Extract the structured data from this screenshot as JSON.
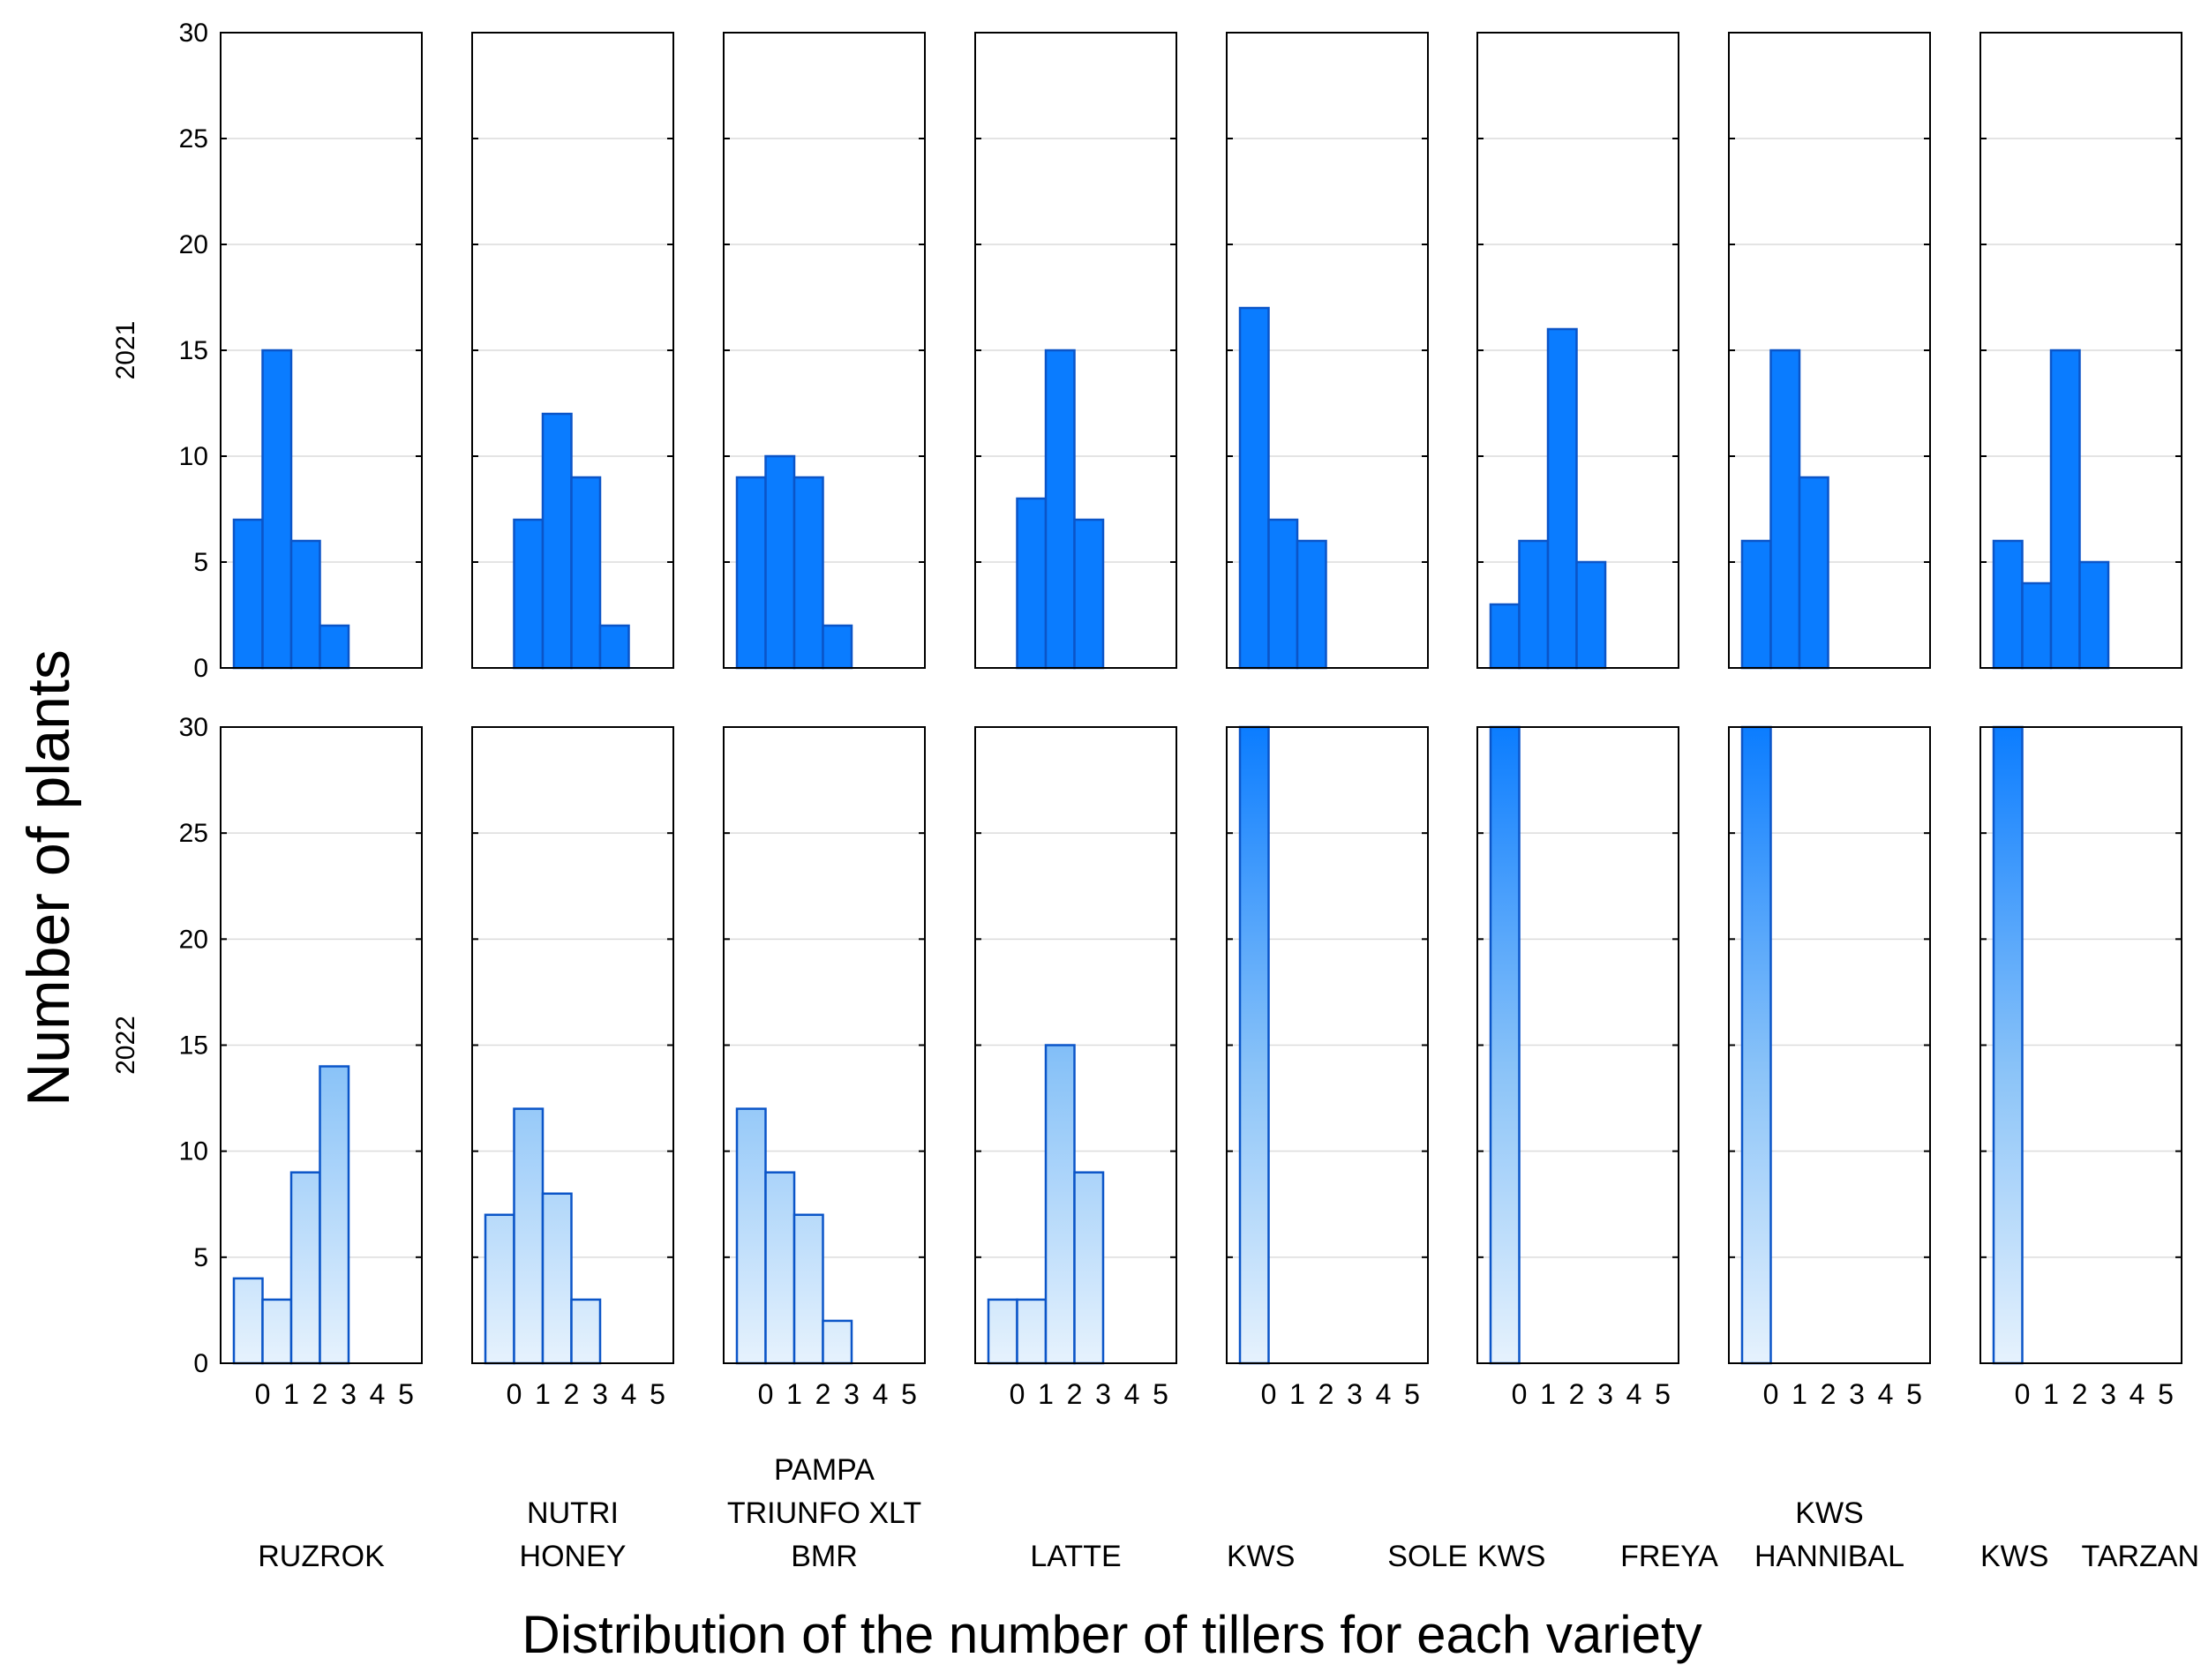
{
  "chart_data": {
    "type": "bar",
    "title": "",
    "xlabel": "Distribution of the number of tillers for each variety",
    "ylabel": "Number of plants",
    "ylim": [
      0,
      30
    ],
    "yticks": [
      "0",
      "5",
      "10",
      "15",
      "20",
      "25",
      "30"
    ],
    "categories": [
      "0",
      "1",
      "2",
      "3",
      "4",
      "5"
    ],
    "bar_color": "#1e88ff",
    "rows": [
      {
        "label": "2021",
        "panels": [
          {
            "variety": "RUZROK",
            "values": [
              7,
              15,
              6,
              2,
              0,
              0
            ]
          },
          {
            "variety": "NUTRI HONEY",
            "values": [
              0,
              7,
              12,
              9,
              2,
              0
            ]
          },
          {
            "variety": "PAMPA TRIUNFO XLT BMR",
            "values": [
              9,
              10,
              9,
              2,
              0,
              0
            ]
          },
          {
            "variety": "LATTE",
            "values": [
              0,
              8,
              15,
              7,
              0,
              0
            ]
          },
          {
            "variety": "KWS SOLE",
            "values": [
              17,
              7,
              6,
              0,
              0,
              0
            ]
          },
          {
            "variety": "KWS FREYA",
            "values": [
              3,
              6,
              16,
              5,
              0,
              0
            ]
          },
          {
            "variety": "KWS HANNIBAL",
            "values": [
              6,
              15,
              9,
              0,
              0,
              0
            ]
          },
          {
            "variety": "KWS TARZAN",
            "values": [
              6,
              4,
              15,
              5,
              0,
              0
            ]
          }
        ]
      },
      {
        "label": "2022",
        "panels": [
          {
            "variety": "RUZROK",
            "values": [
              4,
              3,
              9,
              14,
              0,
              0
            ]
          },
          {
            "variety": "NUTRI HONEY",
            "values": [
              7,
              12,
              8,
              3,
              0,
              0
            ]
          },
          {
            "variety": "PAMPA TRIUNFO XLT BMR",
            "values": [
              12,
              9,
              7,
              2,
              0,
              0
            ]
          },
          {
            "variety": "LATTE",
            "values": [
              3,
              3,
              15,
              9,
              0,
              0
            ]
          },
          {
            "variety": "KWS SOLE",
            "values": [
              30,
              0,
              0,
              0,
              0,
              0
            ]
          },
          {
            "variety": "KWS FREYA",
            "values": [
              30,
              0,
              0,
              0,
              0,
              0
            ]
          },
          {
            "variety": "KWS HANNIBAL",
            "values": [
              30,
              0,
              0,
              0,
              0,
              0
            ]
          },
          {
            "variety": "KWS TARZAN",
            "values": [
              30,
              0,
              0,
              0,
              0,
              0
            ]
          }
        ]
      }
    ],
    "variety_labels": [
      {
        "lines": [
          "RUZROK"
        ]
      },
      {
        "lines": [
          "NUTRI",
          "HONEY"
        ]
      },
      {
        "lines": [
          "PAMPA",
          "TRIUNFO XLT",
          "BMR"
        ]
      },
      {
        "lines": [
          "LATTE"
        ]
      },
      {
        "lines": [
          "KWS",
          "SOLE"
        ]
      },
      {
        "lines": [
          "KWS",
          "FREYA"
        ]
      },
      {
        "lines": [
          "KWS",
          "HANNIBAL"
        ]
      },
      {
        "lines": [
          "KWS",
          "TARZAN"
        ]
      }
    ]
  }
}
